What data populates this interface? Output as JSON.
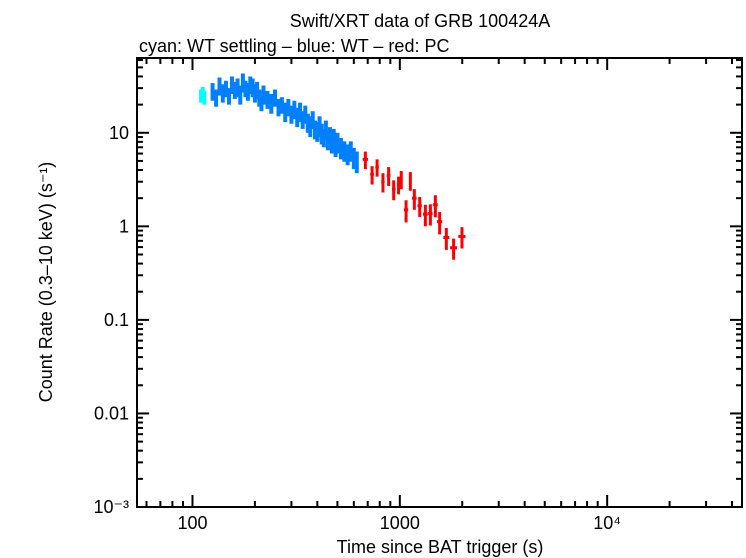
{
  "chart_data": {
    "type": "scatter",
    "title": "Swift/XRT data of GRB 100424A",
    "subtitle": "cyan: WT settling – blue: WT – red: PC",
    "xlabel": "Time since BAT trigger (s)",
    "ylabel": "Count Rate (0.3–10 keV) (s⁻¹)",
    "xscale": "log",
    "yscale": "log",
    "xlim": [
      54,
      44700
    ],
    "ylim": [
      0.001,
      63
    ],
    "grid": false,
    "x_ticks": [
      {
        "value": 100,
        "label": "100"
      },
      {
        "value": 1000,
        "label": "1000"
      },
      {
        "value": 10000,
        "label": "10⁴"
      }
    ],
    "y_ticks": [
      {
        "value": 10,
        "label": "10"
      },
      {
        "value": 1,
        "label": "1"
      },
      {
        "value": 0.1,
        "label": "0.1"
      },
      {
        "value": 0.01,
        "label": "0.01"
      },
      {
        "value": 0.001,
        "label": "10⁻³"
      }
    ],
    "series": [
      {
        "mode": "WT settling",
        "color": "#00ffff",
        "points": [
          [
            110,
            25,
            4
          ],
          [
            112,
            27,
            4
          ],
          [
            114,
            24,
            4
          ]
        ]
      },
      {
        "mode": "WT",
        "color": "#0080ff",
        "points": [
          [
            125,
            28,
            6
          ],
          [
            130,
            24,
            5
          ],
          [
            135,
            32,
            7
          ],
          [
            140,
            27,
            6
          ],
          [
            145,
            30,
            6
          ],
          [
            150,
            25,
            5
          ],
          [
            155,
            33,
            7
          ],
          [
            160,
            29,
            6
          ],
          [
            165,
            31,
            7
          ],
          [
            170,
            26,
            6
          ],
          [
            175,
            35,
            8
          ],
          [
            180,
            30,
            6
          ],
          [
            185,
            28,
            6
          ],
          [
            190,
            33,
            7
          ],
          [
            195,
            31,
            7
          ],
          [
            200,
            27,
            6
          ],
          [
            205,
            29,
            6
          ],
          [
            210,
            24,
            5
          ],
          [
            215,
            22,
            5
          ],
          [
            220,
            26,
            6
          ],
          [
            230,
            23,
            5
          ],
          [
            240,
            21,
            5
          ],
          [
            250,
            24,
            5
          ],
          [
            260,
            19,
            4
          ],
          [
            270,
            20,
            4
          ],
          [
            280,
            17,
            4
          ],
          [
            290,
            19,
            4
          ],
          [
            300,
            16,
            3.5
          ],
          [
            310,
            18,
            4
          ],
          [
            320,
            15,
            3.5
          ],
          [
            330,
            17,
            4
          ],
          [
            340,
            14,
            3
          ],
          [
            350,
            16,
            3.5
          ],
          [
            360,
            13,
            3
          ],
          [
            370,
            12,
            3
          ],
          [
            380,
            14,
            3
          ],
          [
            390,
            11,
            2.5
          ],
          [
            400,
            10.5,
            2.5
          ],
          [
            410,
            12,
            3
          ],
          [
            420,
            10,
            2.5
          ],
          [
            430,
            9,
            2
          ],
          [
            440,
            11,
            2.5
          ],
          [
            450,
            8.5,
            2
          ],
          [
            460,
            9.5,
            2
          ],
          [
            470,
            8,
            2
          ],
          [
            480,
            9,
            2
          ],
          [
            490,
            7.5,
            2
          ],
          [
            500,
            8,
            2
          ],
          [
            520,
            7,
            1.8
          ],
          [
            540,
            6.5,
            1.6
          ],
          [
            560,
            6,
            1.5
          ],
          [
            580,
            6.5,
            1.6
          ],
          [
            600,
            5.5,
            1.4
          ],
          [
            620,
            5,
            1.3
          ]
        ]
      },
      {
        "mode": "PC",
        "color": "#ff0000",
        "points": [
          [
            682,
            20,
            5.2,
            1.1
          ],
          [
            735,
            15,
            3.6,
            0.8
          ],
          [
            777,
            15,
            4.3,
            0.9
          ],
          [
            829,
            15,
            3.0,
            0.7
          ],
          [
            883,
            18,
            3.5,
            0.8
          ],
          [
            934,
            18,
            2.5,
            0.6
          ],
          [
            986,
            18,
            2.8,
            0.6
          ],
          [
            1016,
            15,
            3.2,
            0.7
          ],
          [
            1124,
            15,
            3.1,
            0.7
          ],
          [
            1072,
            25,
            1.5,
            0.4
          ],
          [
            1175,
            30,
            2.0,
            0.5
          ],
          [
            1247,
            30,
            1.66,
            0.4
          ],
          [
            1328,
            35,
            1.35,
            0.35
          ],
          [
            1404,
            35,
            1.37,
            0.35
          ],
          [
            1484,
            40,
            1.7,
            0.45
          ],
          [
            1556,
            45,
            1.12,
            0.3
          ],
          [
            1676,
            55,
            0.76,
            0.2
          ],
          [
            1817,
            70,
            0.59,
            0.15
          ],
          [
            1994,
            80,
            0.78,
            0.2
          ]
        ]
      }
    ]
  }
}
